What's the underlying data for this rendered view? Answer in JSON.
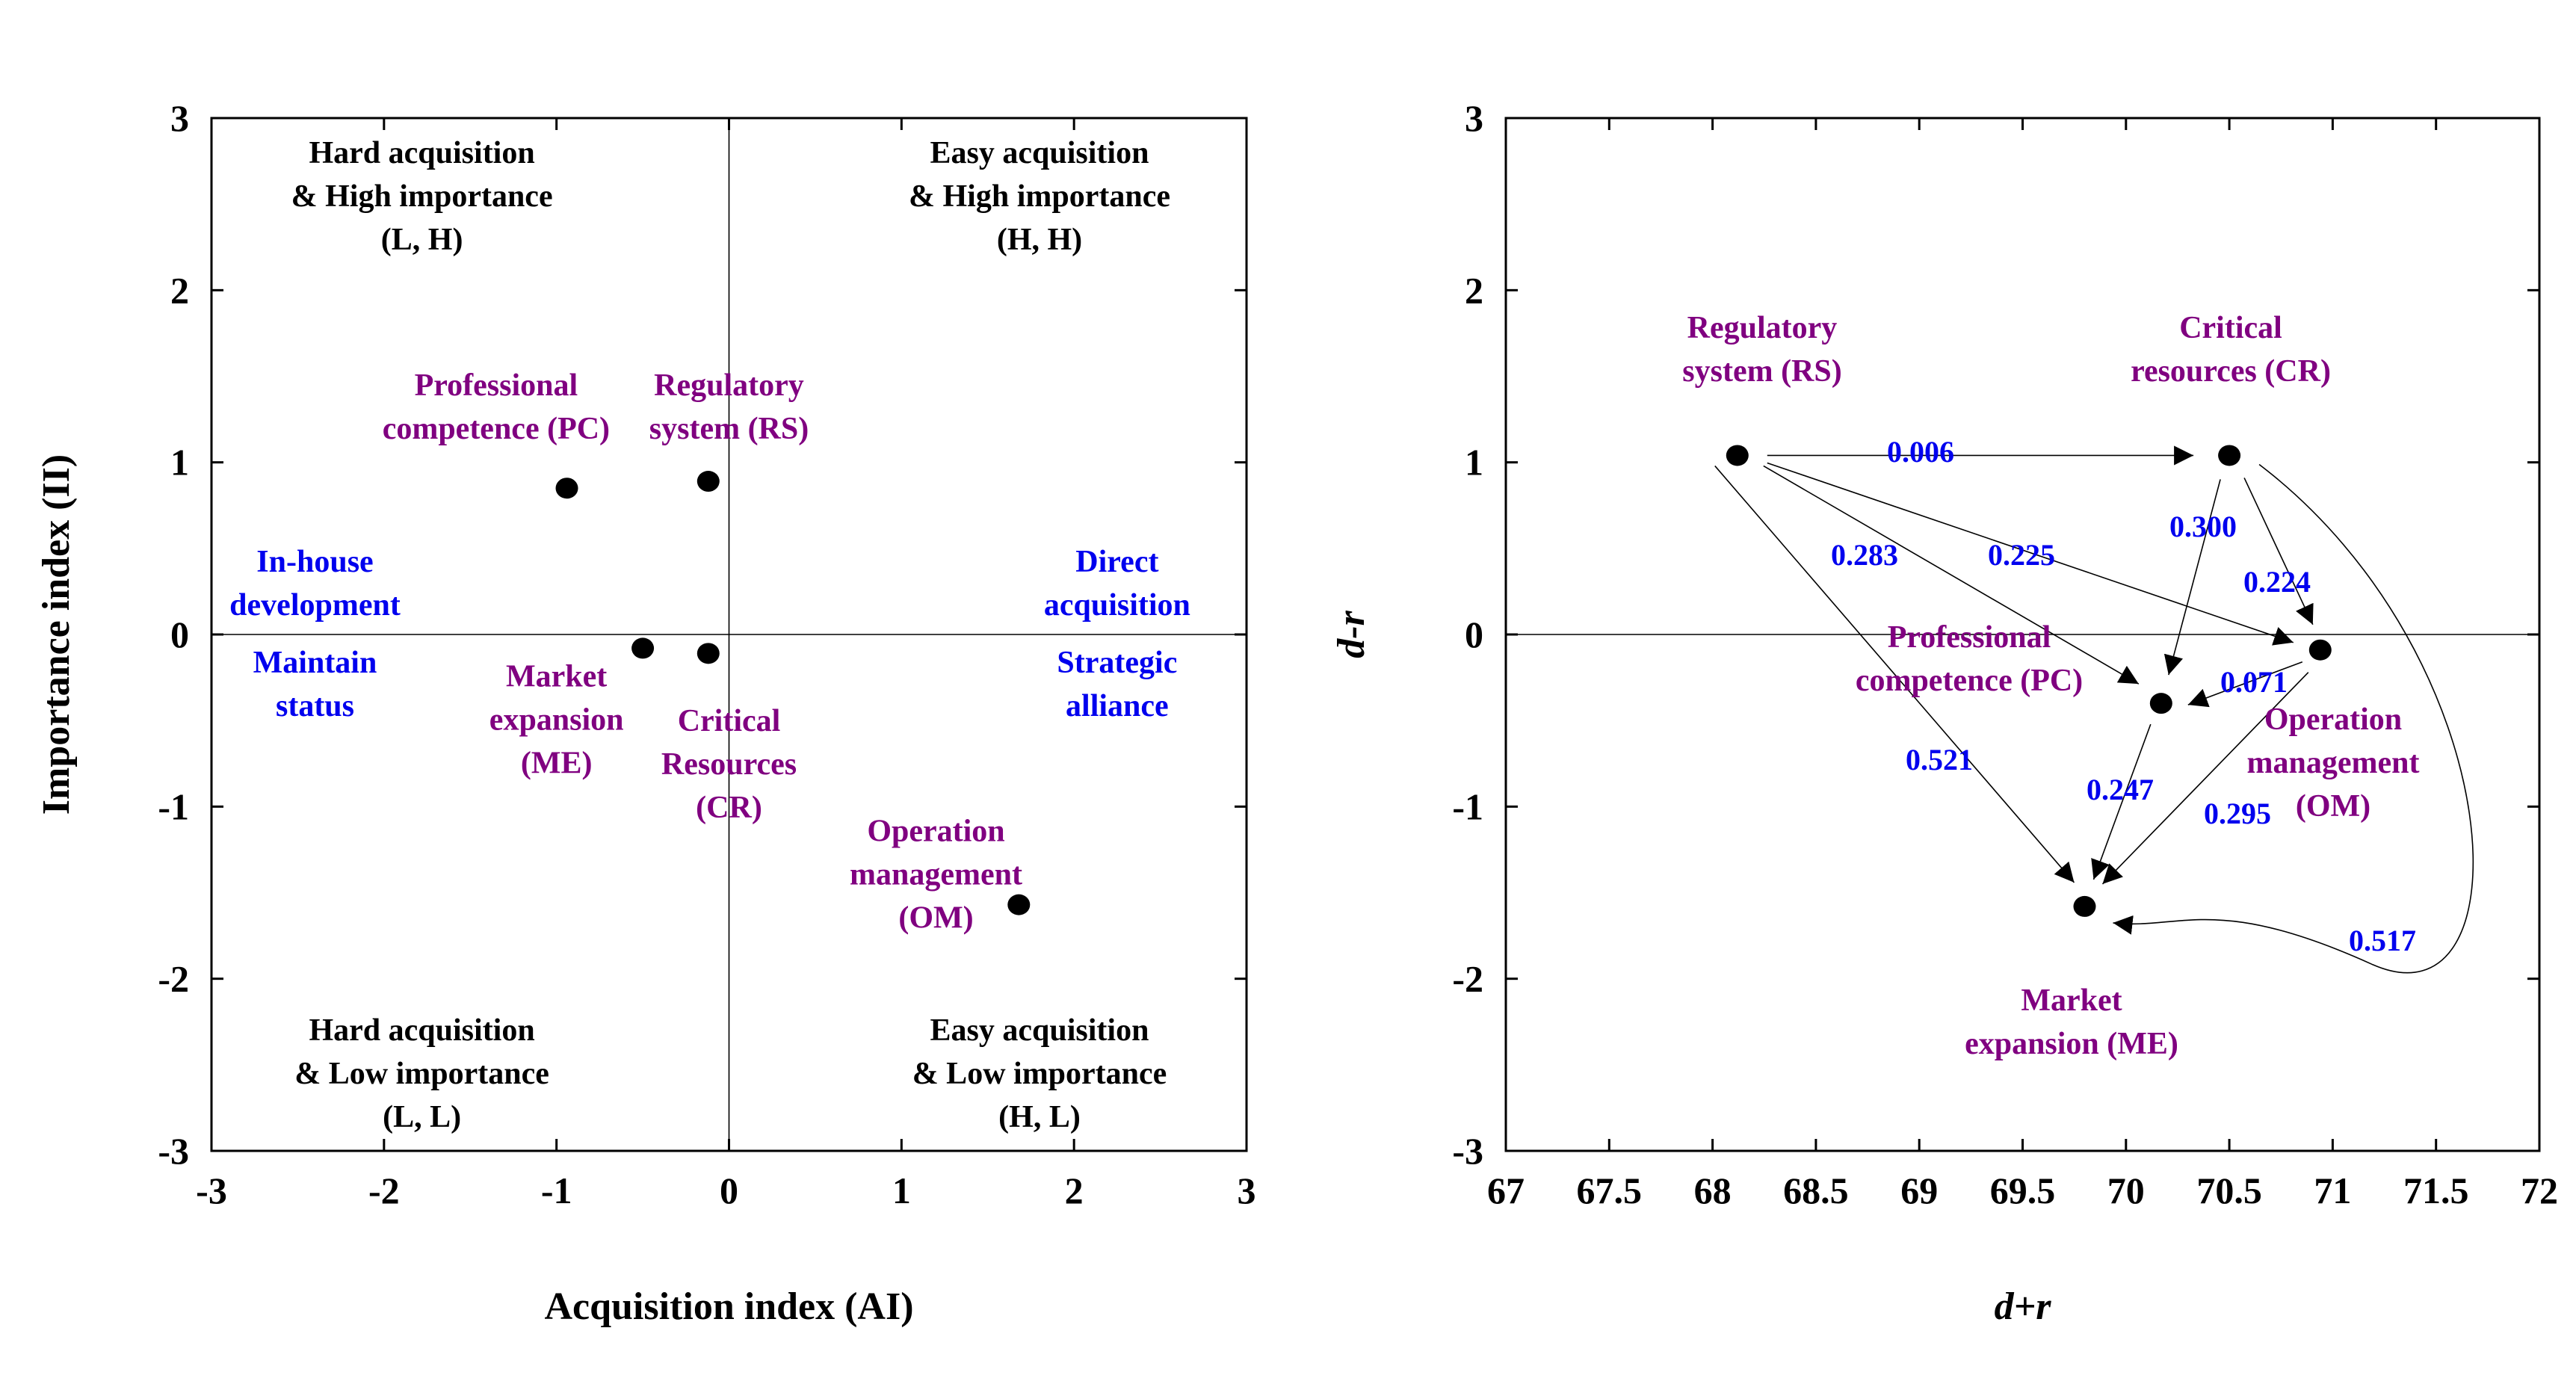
{
  "chart_data": [
    {
      "type": "scatter",
      "xlabel": "Acquisition index (AI)",
      "ylabel": "Importance index (II)",
      "xlim": [
        -3,
        3
      ],
      "ylim": [
        -3,
        3
      ],
      "xticks": [
        "-3",
        "-2",
        "-1",
        "0",
        "1",
        "2",
        "3"
      ],
      "yticks": [
        "-3",
        "-2",
        "-1",
        "0",
        "1",
        "2",
        "3"
      ],
      "quadrant_labels": {
        "top_left": [
          "Hard acquisition",
          "& High importance",
          "(L, H)"
        ],
        "top_right": [
          "Easy acquisition",
          "& High importance",
          "(H, H)"
        ],
        "bottom_left": [
          "Hard acquisition",
          "& Low importance",
          "(L, L)"
        ],
        "bottom_right": [
          "Easy acquisition",
          "& Low importance",
          "(H, L)"
        ]
      },
      "strategy_labels": {
        "top_left": [
          "In-house",
          "development"
        ],
        "top_right": [
          "Direct",
          "acquisition"
        ],
        "bottom_left": [
          "Maintain",
          "status"
        ],
        "bottom_right": [
          "Strategic",
          "alliance"
        ]
      },
      "points": [
        {
          "id": "PC",
          "label": [
            "Professional",
            "competence (PC)"
          ],
          "x": -0.94,
          "y": 0.85
        },
        {
          "id": "RS",
          "label": [
            "Regulatory",
            "system (RS)"
          ],
          "x": -0.12,
          "y": 0.89
        },
        {
          "id": "ME",
          "label": [
            "Market",
            "expansion",
            "(ME)"
          ],
          "x": -0.5,
          "y": -0.08
        },
        {
          "id": "CR",
          "label": [
            "Critical",
            "Resources",
            "(CR)"
          ],
          "x": -0.12,
          "y": -0.11
        },
        {
          "id": "OM",
          "label": [
            "Operation",
            "management",
            "(OM)"
          ],
          "x": 1.68,
          "y": -1.57
        }
      ]
    },
    {
      "type": "scatter",
      "xlabel": "d+r",
      "ylabel": "d-r",
      "xlim": [
        67,
        72
      ],
      "ylim": [
        -3,
        3
      ],
      "xticks": [
        "67",
        "67.5",
        "68",
        "68.5",
        "69",
        "69.5",
        "70",
        "70.5",
        "71",
        "71.5",
        "72"
      ],
      "yticks": [
        "-3",
        "-2",
        "-1",
        "0",
        "1",
        "2",
        "3"
      ],
      "points": [
        {
          "id": "RS",
          "label": [
            "Regulatory",
            "system (RS)"
          ],
          "x": 68.12,
          "y": 1.04
        },
        {
          "id": "CR",
          "label": [
            "Critical",
            "resources (CR)"
          ],
          "x": 70.5,
          "y": 1.04
        },
        {
          "id": "PC",
          "label": [
            "Professional",
            "competence (PC)"
          ],
          "x": 70.17,
          "y": -0.4
        },
        {
          "id": "OM",
          "label": [
            "Operation",
            "management",
            "(OM)"
          ],
          "x": 70.94,
          "y": -0.09
        },
        {
          "id": "ME",
          "label": [
            "Market",
            "expansion (ME)"
          ],
          "x": 69.8,
          "y": -1.58
        }
      ],
      "edges": [
        {
          "from": "RS",
          "to": "CR",
          "value": "0.006"
        },
        {
          "from": "RS",
          "to": "PC",
          "value": "0.283"
        },
        {
          "from": "RS",
          "to": "OM",
          "value": "0.225"
        },
        {
          "from": "RS",
          "to": "ME",
          "value": "0.521"
        },
        {
          "from": "CR",
          "to": "PC",
          "value": "0.300"
        },
        {
          "from": "CR",
          "to": "OM",
          "value": "0.224"
        },
        {
          "from": "CR",
          "to": "ME",
          "value": "0.517"
        },
        {
          "from": "OM",
          "to": "PC",
          "value": "0.071"
        },
        {
          "from": "PC",
          "to": "ME",
          "value": "0.247"
        },
        {
          "from": "OM",
          "to": "ME",
          "value": "0.295"
        }
      ]
    }
  ]
}
